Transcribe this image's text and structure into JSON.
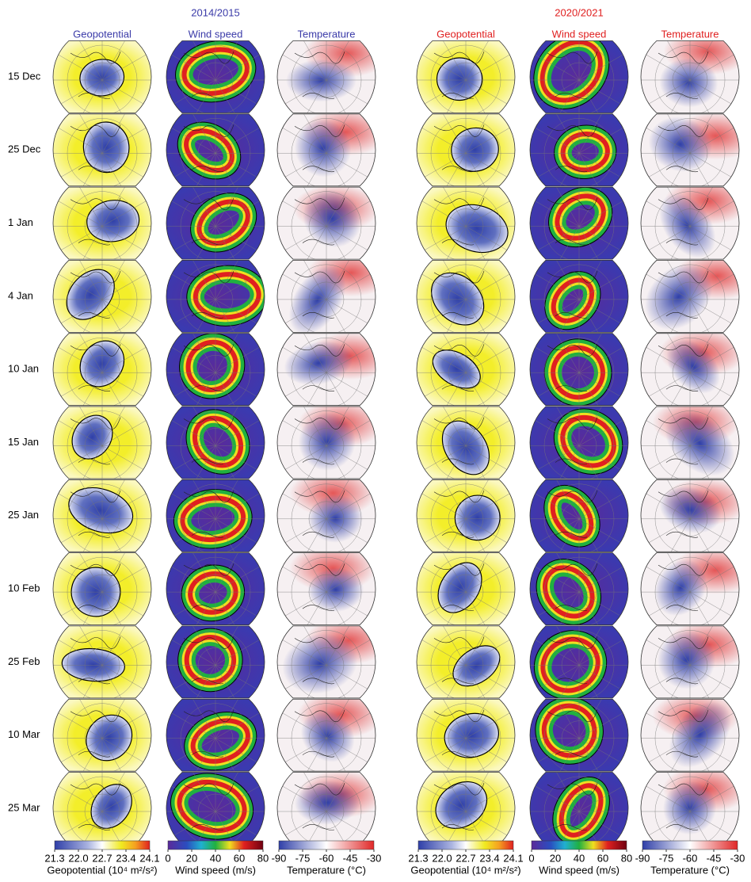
{
  "periods": [
    {
      "title": "2014/2015",
      "columns": [
        "Geopotential",
        "Wind speed",
        "Temperature"
      ]
    },
    {
      "title": "2020/2021",
      "columns": [
        "Geopotential",
        "Wind speed",
        "Temperature"
      ]
    }
  ],
  "rows": [
    "15 Dec",
    "25 Dec",
    "1 Jan",
    "4 Jan",
    "10 Jan",
    "15 Jan",
    "25 Jan",
    "10 Feb",
    "25 Feb",
    "10 Mar",
    "25 Mar"
  ],
  "colorbars": [
    {
      "label": "Geopotential (10⁴ m²/s²)",
      "ticks": [
        "21.3",
        "22.0",
        "22.7",
        "23.4",
        "24.1"
      ]
    },
    {
      "label": "Wind speed (m/s)",
      "ticks": [
        "0",
        "20",
        "40",
        "60",
        "80"
      ]
    },
    {
      "label": "Temperature (°C)",
      "ticks": [
        "-90",
        "-75",
        "-60",
        "-45",
        "-30"
      ]
    }
  ]
}
